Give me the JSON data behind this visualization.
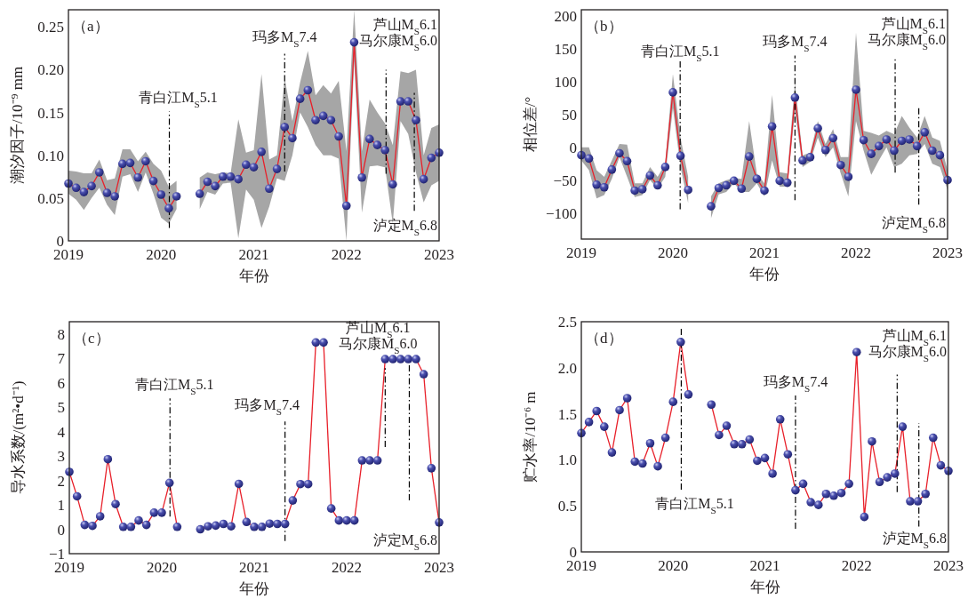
{
  "chart_data": [
    {
      "type": "line",
      "title": "（a）",
      "xlabel": "年份",
      "ylabel": "潮汐因子/10⁻⁹ mm",
      "marker": "circle",
      "line_style": "solid",
      "x": [
        "2019-01",
        "2019-02",
        "2019-03",
        "2019-04",
        "2019-05",
        "2019-06",
        "2019-07",
        "2019-08",
        "2019-09",
        "2019-10",
        "2019-11",
        "2019-12",
        "2020-01",
        "2020-02",
        "2020-03",
        "2020-04",
        "2020-05",
        "2020-06",
        "2020-07",
        "2020-08",
        "2020-09",
        "2020-10",
        "2020-11",
        "2020-12",
        "2021-01",
        "2021-02",
        "2021-03",
        "2021-04",
        "2021-05",
        "2021-06",
        "2021-07",
        "2021-08",
        "2021-09",
        "2021-10",
        "2021-11",
        "2021-12",
        "2022-01",
        "2022-02",
        "2022-03",
        "2022-04",
        "2022-05",
        "2022-06",
        "2022-07",
        "2022-08",
        "2022-09",
        "2022-10",
        "2022-11",
        "2022-12",
        "2023-01"
      ],
      "series": [
        {
          "color": "#e8202a",
          "values": [
            0.067,
            0.062,
            0.057,
            0.064,
            0.08,
            0.056,
            0.052,
            0.09,
            0.091,
            0.074,
            0.093,
            0.07,
            0.054,
            0.038,
            0.052,
            null,
            null,
            0.055,
            0.069,
            0.064,
            0.075,
            0.075,
            0.072,
            0.089,
            0.086,
            0.104,
            0.061,
            0.084,
            0.133,
            0.12,
            0.166,
            0.176,
            0.141,
            0.146,
            0.141,
            0.122,
            0.041,
            0.232,
            0.074,
            0.119,
            0.112,
            0.106,
            0.066,
            0.163,
            0.163,
            0.141,
            0.072,
            0.097,
            0.103
          ],
          "lower": [
            0.055,
            0.048,
            0.036,
            0.05,
            0.062,
            0.042,
            0.03,
            0.075,
            0.078,
            0.057,
            0.08,
            0.055,
            0.027,
            0.02,
            0.037,
            null,
            null,
            0.037,
            0.057,
            0.054,
            0.067,
            0.068,
            0.003,
            0.06,
            0.048,
            0.015,
            0.04,
            0.073,
            0.07,
            0.1,
            0.15,
            0.133,
            0.112,
            0.1,
            0.1,
            0.096,
            0.0,
            0.21,
            0.033,
            0.087,
            0.088,
            0.086,
            0.02,
            0.14,
            0.125,
            0.08,
            0.045,
            0.065,
            0.07
          ],
          "upper": [
            0.082,
            0.081,
            0.079,
            0.079,
            0.095,
            0.071,
            0.073,
            0.107,
            0.107,
            0.093,
            0.104,
            0.09,
            0.082,
            0.063,
            0.07,
            null,
            null,
            0.074,
            0.08,
            0.078,
            0.08,
            0.079,
            0.142,
            0.103,
            0.106,
            0.195,
            0.095,
            0.1,
            0.19,
            0.14,
            0.185,
            0.222,
            0.17,
            0.182,
            0.172,
            0.187,
            0.105,
            0.27,
            0.105,
            0.165,
            0.15,
            0.137,
            0.112,
            0.198,
            0.196,
            0.2,
            0.1,
            0.132,
            0.136
          ]
        }
      ],
      "xlim": [
        "2019",
        "2023"
      ],
      "xticks": [
        "2019",
        "2020",
        "2021",
        "2022",
        "2023"
      ],
      "ylim": [
        0,
        0.27
      ],
      "yticks": [
        0,
        {
          "value": 0.05,
          "label": "0.05"
        },
        {
          "value": 0.1,
          "label": "0.10"
        },
        {
          "value": 0.15,
          "label": "0.15"
        },
        {
          "value": 0.2,
          "label": "0.20"
        },
        {
          "value": 0.25,
          "label": "0.25"
        }
      ],
      "ref_lines": [
        {
          "axis": "x",
          "value": "2020-02-03",
          "label": "青白江M$_{S}$5.1"
        },
        {
          "axis": "x",
          "value": "2021-05-01",
          "label": "玛多M$_{S}$7.4"
        },
        {
          "axis": "x",
          "value": "2022-06-05",
          "label": "芦山M$_{S}$6.1\n马尔康M$_{S}$6.0"
        },
        {
          "axis": "x",
          "value": "2022-09-25",
          "label": "泸定M$_{S}$6.8"
        }
      ]
    },
    {
      "type": "line",
      "title": "（b）",
      "xlabel": "年份",
      "ylabel": "相位差/°",
      "marker": "circle",
      "line_style": "solid",
      "x": [
        "2019-01",
        "2019-02",
        "2019-03",
        "2019-04",
        "2019-05",
        "2019-06",
        "2019-07",
        "2019-08",
        "2019-09",
        "2019-10",
        "2019-11",
        "2019-12",
        "2020-01",
        "2020-02",
        "2020-03",
        "2020-04",
        "2020-05",
        "2020-06",
        "2020-07",
        "2020-08",
        "2020-09",
        "2020-10",
        "2020-11",
        "2020-12",
        "2021-01",
        "2021-02",
        "2021-03",
        "2021-04",
        "2021-05",
        "2021-06",
        "2021-07",
        "2021-08",
        "2021-09",
        "2021-10",
        "2021-11",
        "2021-12",
        "2022-01",
        "2022-02",
        "2022-03",
        "2022-04",
        "2022-05",
        "2022-06",
        "2022-07",
        "2022-08",
        "2022-09",
        "2022-10",
        "2022-11",
        "2022-12",
        "2023-01"
      ],
      "series": [
        {
          "color": "#e8202a",
          "values": [
            -12,
            -17,
            -57,
            -61,
            -34,
            -9,
            -21,
            -66,
            -64,
            -43,
            -58,
            -30,
            84,
            -13,
            -65,
            null,
            null,
            -90,
            -62,
            -58,
            -51,
            -63,
            -14,
            -48,
            -66,
            32,
            -51,
            -54,
            76,
            -20,
            -15,
            29,
            -4,
            14,
            -27,
            -45,
            88,
            11,
            -10,
            2,
            12,
            -5,
            10,
            12,
            2,
            23,
            -5,
            -12,
            -50
          ],
          "lower": [
            -20,
            -35,
            -78,
            -73,
            -48,
            -15,
            -45,
            -76,
            -73,
            -50,
            -63,
            -45,
            60,
            -30,
            -85,
            null,
            null,
            -108,
            -72,
            -68,
            -55,
            -68,
            -68,
            -55,
            -75,
            -20,
            -60,
            -60,
            55,
            -30,
            -22,
            15,
            -15,
            0,
            -40,
            -75,
            40,
            -5,
            -42,
            -20,
            0,
            -30,
            -25,
            -12,
            -10,
            5,
            -25,
            -30,
            -65
          ],
          "upper": [
            0,
            0,
            -35,
            -45,
            -20,
            5,
            4,
            -55,
            -55,
            -30,
            -45,
            -25,
            112,
            15,
            -45,
            null,
            null,
            -75,
            -55,
            -50,
            -47,
            -48,
            40,
            -40,
            -55,
            80,
            -38,
            -40,
            98,
            -12,
            -8,
            40,
            5,
            28,
            -15,
            -15,
            175,
            25,
            22,
            18,
            25,
            20,
            48,
            30,
            15,
            48,
            15,
            10,
            -35
          ]
        }
      ],
      "xlim": [
        "2019",
        "2023"
      ],
      "xticks": [
        "2019",
        "2020",
        "2021",
        "2022",
        "2023"
      ],
      "ylim": [
        -140,
        210
      ],
      "yticks": [
        {
          "value": -100,
          "label": "−100"
        },
        {
          "value": -50,
          "label": "−50"
        },
        0,
        50,
        100,
        150,
        200
      ],
      "ref_lines": [
        {
          "axis": "x",
          "value": "2020-01-30",
          "label": "青白江M$_{S}$5.1"
        },
        {
          "axis": "x",
          "value": "2021-05-01",
          "label": "玛多M$_{S}$7.4"
        },
        {
          "axis": "x",
          "value": "2022-06-05",
          "label": "芦山M$_{S}$6.1\n马尔康M$_{S}$6.0"
        },
        {
          "axis": "x",
          "value": "2022-09-08",
          "label": "泸定M$_{S}$6.8"
        }
      ]
    },
    {
      "type": "line",
      "title": "（c）",
      "xlabel": "年份",
      "ylabel": "导水系数/(m²•d⁻¹)",
      "marker": "circle",
      "line_style": "solid",
      "x": [
        "2019-01",
        "2019-02",
        "2019-03",
        "2019-04",
        "2019-05",
        "2019-06",
        "2019-07",
        "2019-08",
        "2019-09",
        "2019-10",
        "2019-11",
        "2019-12",
        "2020-01",
        "2020-02",
        "2020-03",
        "2020-04",
        "2020-05",
        "2020-06",
        "2020-07",
        "2020-08",
        "2020-09",
        "2020-10",
        "2020-11",
        "2020-12",
        "2021-01",
        "2021-02",
        "2021-03",
        "2021-04",
        "2021-05",
        "2021-06",
        "2021-07",
        "2021-08",
        "2021-09",
        "2021-10",
        "2021-11",
        "2021-12",
        "2022-01",
        "2022-02",
        "2022-03",
        "2022-04",
        "2022-05",
        "2022-06",
        "2022-07",
        "2022-08",
        "2022-09",
        "2022-10",
        "2022-11",
        "2022-12",
        "2023-01"
      ],
      "series": [
        {
          "color": "#e8202a",
          "values": [
            2.35,
            1.35,
            0.18,
            0.14,
            0.53,
            2.87,
            1.03,
            0.1,
            0.1,
            0.36,
            0.18,
            0.68,
            0.68,
            1.9,
            0.1,
            null,
            null,
            0.0,
            0.12,
            0.15,
            0.22,
            0.12,
            1.86,
            0.3,
            0.1,
            0.1,
            0.23,
            0.22,
            0.22,
            1.18,
            1.85,
            1.85,
            7.65,
            7.65,
            0.85,
            0.36,
            0.36,
            0.36,
            2.82,
            2.82,
            2.82,
            6.97,
            6.97,
            6.97,
            6.97,
            6.97,
            6.35,
            2.5,
            0.28
          ]
        }
      ],
      "xlim": [
        "2019",
        "2023"
      ],
      "xticks": [
        "2019",
        "2020",
        "2021",
        "2022",
        "2023"
      ],
      "ylim": [
        -1,
        8.5
      ],
      "yticks": [
        {
          "value": -1,
          "label": "−1"
        },
        0,
        1,
        2,
        3,
        4,
        5,
        6,
        7,
        8
      ],
      "ref_lines": [
        {
          "axis": "x",
          "value": "2020-02-03",
          "label": "青白江M$_{S}$5.1"
        },
        {
          "axis": "x",
          "value": "2021-05-01",
          "label": "玛多M$_{S}$7.4"
        },
        {
          "axis": "x",
          "value": "2022-06-01",
          "label": "芦山M$_{S}$6.1\n马尔康M$_{S}$6.0"
        },
        {
          "axis": "x",
          "value": "2022-09-05",
          "label": "泸定M$_{S}$6.8"
        }
      ]
    },
    {
      "type": "line",
      "title": "（d）",
      "xlabel": "年份",
      "ylabel": "贮水率/10⁻⁶ m",
      "marker": "circle",
      "line_style": "solid",
      "x": [
        "2019-01",
        "2019-02",
        "2019-03",
        "2019-04",
        "2019-05",
        "2019-06",
        "2019-07",
        "2019-08",
        "2019-09",
        "2019-10",
        "2019-11",
        "2019-12",
        "2020-01",
        "2020-02",
        "2020-03",
        "2020-04",
        "2020-05",
        "2020-06",
        "2020-07",
        "2020-08",
        "2020-09",
        "2020-10",
        "2020-11",
        "2020-12",
        "2021-01",
        "2021-02",
        "2021-03",
        "2021-04",
        "2021-05",
        "2021-06",
        "2021-07",
        "2021-08",
        "2021-09",
        "2021-10",
        "2021-11",
        "2021-12",
        "2022-01",
        "2022-02",
        "2022-03",
        "2022-04",
        "2022-05",
        "2022-06",
        "2022-07",
        "2022-08",
        "2022-09",
        "2022-10",
        "2022-11",
        "2022-12",
        "2023-01"
      ],
      "series": [
        {
          "color": "#e8202a",
          "values": [
            1.29,
            1.41,
            1.53,
            1.36,
            1.08,
            1.54,
            1.67,
            0.98,
            0.96,
            1.18,
            0.93,
            1.24,
            1.63,
            2.28,
            1.71,
            null,
            null,
            1.6,
            1.27,
            1.37,
            1.17,
            1.17,
            1.22,
            0.99,
            1.02,
            0.85,
            1.44,
            1.06,
            0.67,
            0.74,
            0.54,
            0.51,
            0.63,
            0.61,
            0.64,
            0.74,
            2.17,
            0.38,
            1.2,
            0.76,
            0.81,
            0.85,
            1.36,
            0.55,
            0.55,
            0.63,
            1.24,
            0.94,
            0.88
          ]
        }
      ],
      "xlim": [
        "2019",
        "2023"
      ],
      "xticks": [
        "2019",
        "2020",
        "2021",
        "2022",
        "2023"
      ],
      "ylim": [
        0,
        2.5
      ],
      "yticks": [
        0,
        0.5,
        {
          "value": 1,
          "label": "1.0"
        },
        1.5,
        {
          "value": 2,
          "label": "2.0"
        },
        2.5
      ],
      "ref_lines": [
        {
          "axis": "x",
          "value": "2020-02-03",
          "label": "青白江M$_{S}$5.1"
        },
        {
          "axis": "x",
          "value": "2021-05-01",
          "label": "玛多M$_{S}$7.4"
        },
        {
          "axis": "x",
          "value": "2022-06-10",
          "label": "芦山M$_{S}$6.1\n马尔康M$_{S}$6.0"
        },
        {
          "axis": "x",
          "value": "2022-09-05",
          "label": "泸定M$_{S}$6.8"
        }
      ]
    }
  ]
}
